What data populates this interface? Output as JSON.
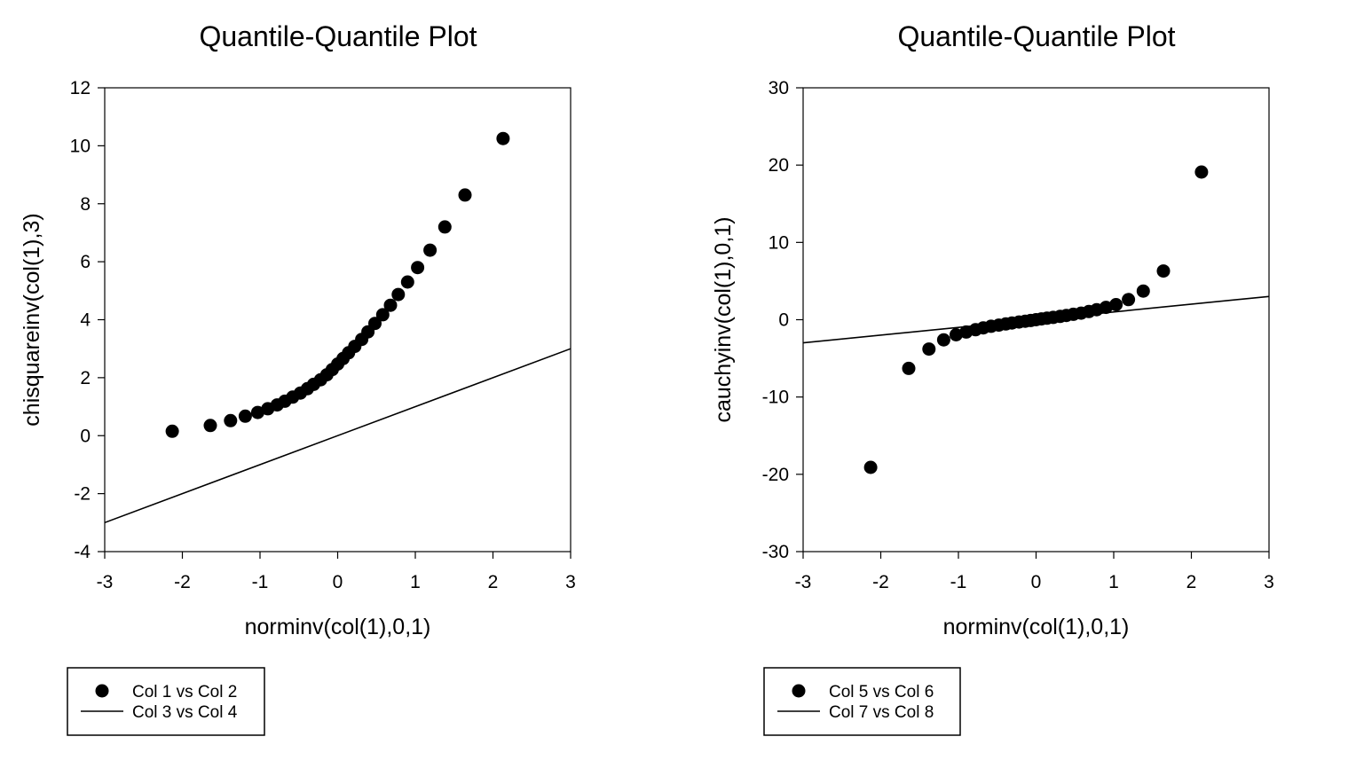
{
  "chart_data": [
    {
      "type": "scatter",
      "title": "Quantile-Quantile Plot",
      "xlabel": "norminv(col(1),0,1)",
      "ylabel": "chisquareinv(col(1),3)",
      "xlim": [
        -3,
        3
      ],
      "ylim": [
        -4,
        12
      ],
      "xticks": [
        -3,
        -2,
        -1,
        0,
        1,
        2,
        3
      ],
      "yticks": [
        -4,
        -2,
        0,
        2,
        4,
        6,
        8,
        10,
        12
      ],
      "grid": false,
      "legend_position": "bottom-left",
      "series": [
        {
          "name": "Col 1 vs Col 2",
          "kind": "points",
          "color": "#000000",
          "x": [
            -2.13,
            -1.64,
            -1.38,
            -1.19,
            -1.03,
            -0.9,
            -0.78,
            -0.68,
            -0.58,
            -0.48,
            -0.39,
            -0.31,
            -0.22,
            -0.14,
            -0.07,
            0.0,
            0.07,
            0.14,
            0.22,
            0.31,
            0.39,
            0.48,
            0.58,
            0.68,
            0.78,
            0.9,
            1.03,
            1.19,
            1.38,
            1.64,
            2.13
          ],
          "y": [
            0.15,
            0.35,
            0.52,
            0.67,
            0.8,
            0.93,
            1.06,
            1.19,
            1.33,
            1.47,
            1.62,
            1.77,
            1.93,
            2.1,
            2.28,
            2.47,
            2.66,
            2.86,
            3.08,
            3.32,
            3.58,
            3.87,
            4.17,
            4.5,
            4.87,
            5.3,
            5.8,
            6.4,
            7.2,
            8.3,
            10.25
          ]
        },
        {
          "name": "Col 3 vs Col 4",
          "kind": "line",
          "color": "#000000",
          "x": [
            -3,
            3
          ],
          "y": [
            -3,
            3
          ]
        }
      ]
    },
    {
      "type": "scatter",
      "title": "Quantile-Quantile Plot",
      "xlabel": "norminv(col(1),0,1)",
      "ylabel": "cauchyinv(col(1),0,1)",
      "xlim": [
        -3,
        3
      ],
      "ylim": [
        -30,
        30
      ],
      "xticks": [
        -3,
        -2,
        -1,
        0,
        1,
        2,
        3
      ],
      "yticks": [
        -30,
        -20,
        -10,
        0,
        10,
        20,
        30
      ],
      "grid": false,
      "legend_position": "bottom-left",
      "series": [
        {
          "name": "Col 5 vs Col 6",
          "kind": "points",
          "color": "#000000",
          "x": [
            -2.13,
            -1.64,
            -1.38,
            -1.19,
            -1.03,
            -0.9,
            -0.78,
            -0.68,
            -0.58,
            -0.48,
            -0.39,
            -0.31,
            -0.22,
            -0.14,
            -0.07,
            0.0,
            0.07,
            0.14,
            0.22,
            0.31,
            0.39,
            0.48,
            0.58,
            0.68,
            0.78,
            0.9,
            1.03,
            1.19,
            1.38,
            1.64,
            2.13
          ],
          "y": [
            -19.1,
            -6.3,
            -3.8,
            -2.6,
            -1.95,
            -1.6,
            -1.3,
            -1.05,
            -0.85,
            -0.7,
            -0.55,
            -0.42,
            -0.3,
            -0.2,
            -0.1,
            0.0,
            0.1,
            0.2,
            0.3,
            0.42,
            0.55,
            0.7,
            0.85,
            1.05,
            1.3,
            1.6,
            1.95,
            2.6,
            3.7,
            6.3,
            19.1
          ]
        },
        {
          "name": "Col 7 vs Col 8",
          "kind": "line",
          "color": "#000000",
          "x": [
            -3,
            3
          ],
          "y": [
            -3,
            3
          ]
        }
      ]
    }
  ]
}
